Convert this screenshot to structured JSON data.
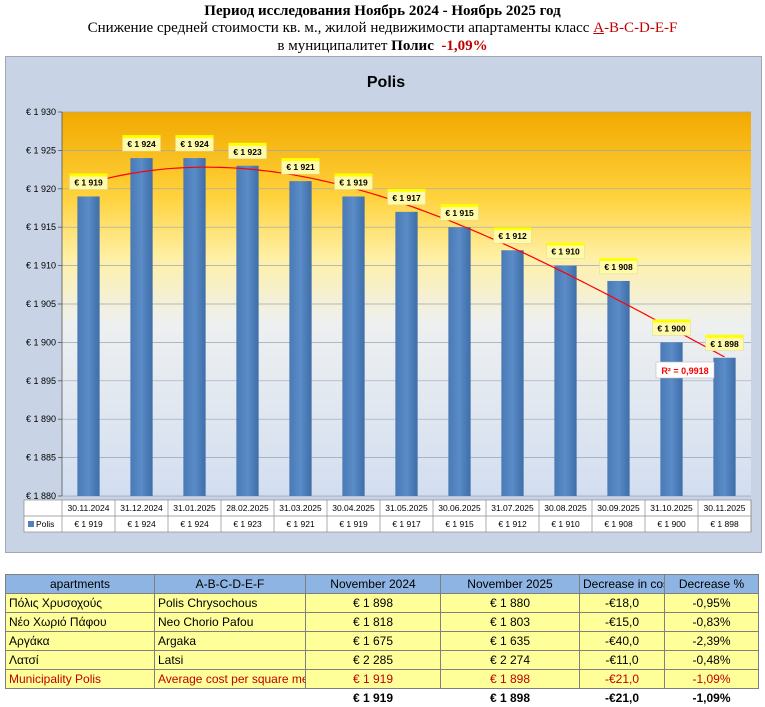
{
  "header": {
    "line1": "Период исследования Ноябрь 2024 - Ноябрь 2025 год",
    "line2_prefix": "Снижение средней стоимости кв. м., жилой недвижимости апартаменты класс ",
    "line2_classA": "A",
    "line2_classRest": "-B-C-D-E-F",
    "line3_prefix": "в муниципалитет ",
    "line3_city": "Полис",
    "line3_change": "-1,09%"
  },
  "chart_data": {
    "type": "bar",
    "title": "Polis",
    "categories": [
      "30.11.2024",
      "31.12.2024",
      "31.01.2025",
      "28.02.2025",
      "31.03.2025",
      "30.04.2025",
      "31.05.2025",
      "30.06.2025",
      "31.07.2025",
      "30.08.2025",
      "30.09.2025",
      "31.10.2025",
      "30.11.2025"
    ],
    "series": [
      {
        "name": "Polis",
        "values": [
          1919,
          1924,
          1924,
          1923,
          1921,
          1919,
          1917,
          1915,
          1912,
          1910,
          1908,
          1900,
          1898
        ]
      }
    ],
    "data_labels": [
      "€ 1 919",
      "€ 1 924",
      "€ 1 924",
      "€ 1 923",
      "€ 1 921",
      "€ 1 919",
      "€ 1 917",
      "€ 1 915",
      "€ 1 912",
      "€ 1 910",
      "€ 1 908",
      "€ 1 900",
      "€ 1 898"
    ],
    "ylim": [
      1880,
      1930
    ],
    "yticks": [
      1880,
      1885,
      1890,
      1895,
      1900,
      1905,
      1910,
      1915,
      1920,
      1925,
      1930
    ],
    "ytick_labels": [
      "€ 1 880",
      "€ 1 885",
      "€ 1 890",
      "€ 1 895",
      "€ 1 900",
      "€ 1 905",
      "€ 1 910",
      "€ 1 915",
      "€ 1 920",
      "€ 1 925",
      "€ 1 930"
    ],
    "trendline_label": "R² = 0,9918",
    "grid": true,
    "legend": "data-table",
    "colors": {
      "bar": "#4f81bd",
      "trend": "#ff0000",
      "label_bg": "#fffaaa",
      "label_tab": "#ffff00"
    }
  },
  "table": {
    "headers": [
      "apartments",
      "A-B-C-D-E-F",
      "November 2024",
      "November 2025",
      "Decrease in cost",
      "Decrease %"
    ],
    "rows": [
      [
        "Πόλις Χρυσοχούς",
        "Polis Chrysochous",
        "€ 1 898",
        "€ 1 880",
        "-€18,0",
        "-0,95%"
      ],
      [
        "Νέο Χωριό Πάφου",
        "Neo Chorio Pafou",
        "€ 1 818",
        "€ 1 803",
        "-€15,0",
        "-0,83%"
      ],
      [
        "Αργάκα",
        "Argaka",
        "€ 1 675",
        "€ 1 635",
        "-€40,0",
        "-2,39%"
      ],
      [
        "Λατσί",
        "Latsi",
        "€ 2 285",
        "€ 2 274",
        "-€11,0",
        "-0,48%"
      ]
    ],
    "municipality": [
      "Municipality Polis",
      "Average cost per square meter",
      "€ 1 919",
      "€ 1 898",
      "-€21,0",
      "-1,09%"
    ],
    "totals": [
      "",
      "",
      "€ 1 919",
      "€ 1 898",
      "-€21,0",
      "-1,09%"
    ]
  }
}
